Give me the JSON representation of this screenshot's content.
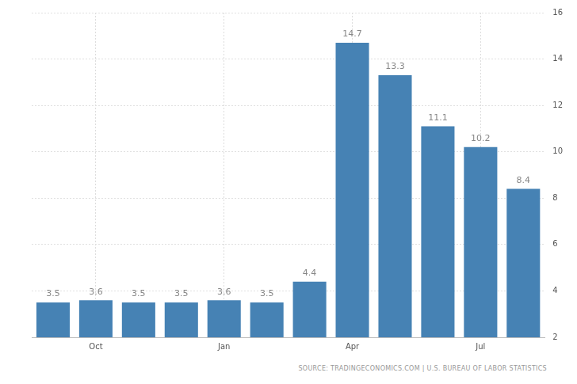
{
  "chart_data": {
    "type": "bar",
    "categories": [
      null,
      "Oct",
      null,
      null,
      "Jan",
      null,
      null,
      "Apr",
      null,
      null,
      "Jul",
      null
    ],
    "values": [
      3.5,
      3.6,
      3.5,
      3.5,
      3.6,
      3.5,
      4.4,
      14.7,
      13.3,
      11.1,
      10.2,
      8.4
    ],
    "color": "#4682b4",
    "ylim": [
      2,
      16
    ],
    "yticks": [
      2,
      4,
      6,
      8,
      10,
      12,
      14,
      16
    ],
    "grid": true,
    "data_labels": true,
    "source": "SOURCE: TRADINGECONOMICS.COM | U.S. BUREAU OF LABOR STATISTICS"
  }
}
